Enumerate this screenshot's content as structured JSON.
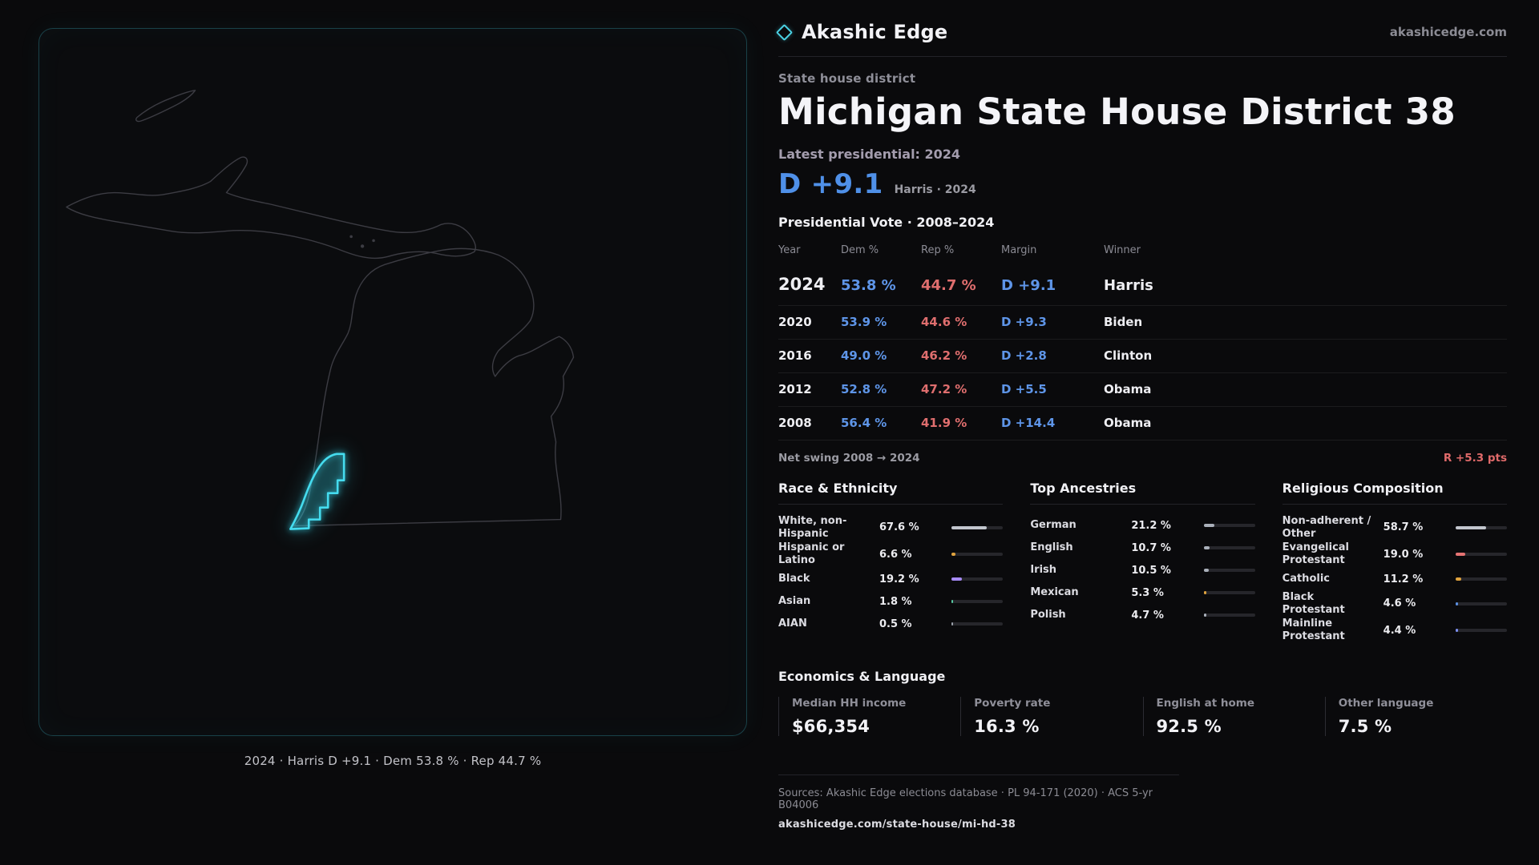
{
  "brand": {
    "name": "Akashic Edge",
    "domain": "akashicedge.com"
  },
  "map": {
    "caption": "2024 · Harris D +9.1 · Dem 53.8 % · Rep 44.7 %"
  },
  "header": {
    "kicker": "State house district",
    "title": "Michigan State House District 38",
    "latest_label": "Latest presidential: 2024",
    "margin_value": "D +9.1",
    "margin_detail": "Harris · 2024"
  },
  "table": {
    "title": "Presidential Vote · 2008–2024",
    "columns": [
      "Year",
      "Dem %",
      "Rep %",
      "Margin",
      "Winner"
    ],
    "rows": [
      {
        "year": "2024",
        "dem": "53.8 %",
        "rep": "44.7 %",
        "margin": "D +9.1",
        "winner": "Harris"
      },
      {
        "year": "2020",
        "dem": "53.9 %",
        "rep": "44.6 %",
        "margin": "D +9.3",
        "winner": "Biden"
      },
      {
        "year": "2016",
        "dem": "49.0 %",
        "rep": "46.2 %",
        "margin": "D +2.8",
        "winner": "Clinton"
      },
      {
        "year": "2012",
        "dem": "52.8 %",
        "rep": "47.2 %",
        "margin": "D +5.5",
        "winner": "Obama"
      },
      {
        "year": "2008",
        "dem": "56.4 %",
        "rep": "41.9 %",
        "margin": "D +14.4",
        "winner": "Obama"
      }
    ],
    "net_swing_label": "Net swing 2008 → 2024",
    "net_swing_value": "R +5.3 pts"
  },
  "demographics": {
    "race": {
      "title": "Race & Ethnicity",
      "rows": [
        {
          "label": "White, non-Hispanic",
          "value": "67.6 %",
          "pct": 67.6,
          "color": "#c2c6ce"
        },
        {
          "label": "Hispanic or Latino",
          "value": "6.6 %",
          "pct": 6.6,
          "color": "#e0a33e"
        },
        {
          "label": "Black",
          "value": "19.2 %",
          "pct": 19.2,
          "color": "#a78bfa"
        },
        {
          "label": "Asian",
          "value": "1.8 %",
          "pct": 1.8,
          "color": "#57c9a2"
        },
        {
          "label": "AIAN",
          "value": "0.5 %",
          "pct": 0.5,
          "color": "#9aa0aa"
        }
      ]
    },
    "ancestries": {
      "title": "Top Ancestries",
      "rows": [
        {
          "label": "German",
          "value": "21.2 %",
          "pct": 21.2,
          "color": "#aab0ba"
        },
        {
          "label": "English",
          "value": "10.7 %",
          "pct": 10.7,
          "color": "#aab0ba"
        },
        {
          "label": "Irish",
          "value": "10.5 %",
          "pct": 10.5,
          "color": "#aab0ba"
        },
        {
          "label": "Mexican",
          "value": "5.3 %",
          "pct": 5.3,
          "color": "#e0a33e"
        },
        {
          "label": "Polish",
          "value": "4.7 %",
          "pct": 4.7,
          "color": "#aab0ba"
        }
      ]
    },
    "religion": {
      "title": "Religious Composition",
      "rows": [
        {
          "label": "Non-adherent / Other",
          "value": "58.7 %",
          "pct": 58.7,
          "color": "#c2c6ce"
        },
        {
          "label": "Evangelical Protestant",
          "value": "19.0 %",
          "pct": 19.0,
          "color": "#e57373"
        },
        {
          "label": "Catholic",
          "value": "11.2 %",
          "pct": 11.2,
          "color": "#e0a33e"
        },
        {
          "label": "Black Protestant",
          "value": "4.6 %",
          "pct": 4.6,
          "color": "#5b8fe0"
        },
        {
          "label": "Mainline Protestant",
          "value": "4.4 %",
          "pct": 4.4,
          "color": "#7c8ef0"
        }
      ]
    }
  },
  "economics": {
    "title": "Economics & Language",
    "stats": [
      {
        "label": "Median HH income",
        "value": "$66,354"
      },
      {
        "label": "Poverty rate",
        "value": "16.3 %"
      },
      {
        "label": "English at home",
        "value": "92.5 %"
      },
      {
        "label": "Other language",
        "value": "7.5 %"
      }
    ]
  },
  "footer": {
    "sources": "Sources: Akashic Edge elections database · PL 94-171 (2020) · ACS 5-yr B04006",
    "permalink": "akashicedge.com/state-house/mi-hd-38"
  },
  "chart_data": [
    {
      "type": "table",
      "title": "Presidential Vote · 2008–2024",
      "columns": [
        "Year",
        "Dem %",
        "Rep %",
        "Margin",
        "Winner"
      ],
      "rows": [
        [
          "2024",
          53.8,
          44.7,
          "D +9.1",
          "Harris"
        ],
        [
          "2020",
          53.9,
          44.6,
          "D +9.3",
          "Biden"
        ],
        [
          "2016",
          49.0,
          46.2,
          "D +2.8",
          "Clinton"
        ],
        [
          "2012",
          52.8,
          47.2,
          "D +5.5",
          "Obama"
        ],
        [
          "2008",
          56.4,
          41.9,
          "D +14.4",
          "Obama"
        ]
      ]
    },
    {
      "type": "bar",
      "title": "Race & Ethnicity",
      "categories": [
        "White, non-Hispanic",
        "Hispanic or Latino",
        "Black",
        "Asian",
        "AIAN"
      ],
      "values": [
        67.6,
        6.6,
        19.2,
        1.8,
        0.5
      ],
      "unit": "%",
      "xlim": [
        0,
        100
      ]
    },
    {
      "type": "bar",
      "title": "Top Ancestries",
      "categories": [
        "German",
        "English",
        "Irish",
        "Mexican",
        "Polish"
      ],
      "values": [
        21.2,
        10.7,
        10.5,
        5.3,
        4.7
      ],
      "unit": "%",
      "xlim": [
        0,
        100
      ]
    },
    {
      "type": "bar",
      "title": "Religious Composition",
      "categories": [
        "Non-adherent / Other",
        "Evangelical Protestant",
        "Catholic",
        "Black Protestant",
        "Mainline Protestant"
      ],
      "values": [
        58.7,
        19.0,
        11.2,
        4.6,
        4.4
      ],
      "unit": "%",
      "xlim": [
        0,
        100
      ]
    }
  ]
}
